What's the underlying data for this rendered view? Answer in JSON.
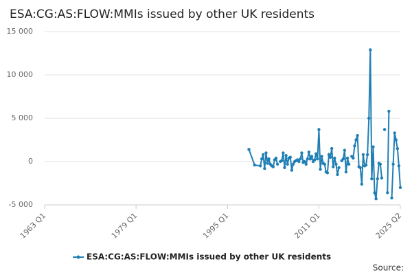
{
  "chart_data": {
    "type": "line",
    "title": "ESA:CG:AS:FLOW:MMIs issued by other UK residents",
    "source_label": "Source:",
    "x": [
      1998.75,
      1999.75,
      2000.75,
      2001.0,
      2001.25,
      2001.5,
      2001.75,
      2002.0,
      2002.25,
      2002.5,
      2002.75,
      2003.0,
      2003.25,
      2003.5,
      2003.75,
      2004.0,
      2004.25,
      2004.5,
      2004.75,
      2005.0,
      2005.25,
      2005.5,
      2005.75,
      2006.0,
      2006.25,
      2006.5,
      2006.75,
      2007.0,
      2007.25,
      2007.5,
      2007.75,
      2008.0,
      2008.25,
      2008.5,
      2008.75,
      2009.0,
      2009.25,
      2009.5,
      2009.75,
      2010.0,
      2010.25,
      2010.5,
      2010.75,
      2011.0,
      2011.25,
      2011.5,
      2011.75,
      2012.0,
      2012.25,
      2012.5,
      2012.75,
      2013.0,
      2013.25,
      2013.5,
      2013.75,
      2014.0,
      2014.25,
      2014.5,
      2014.75,
      2015.0,
      2015.25,
      2015.5,
      2015.75,
      2016.0,
      2016.25,
      2016.5,
      2016.75,
      2017.0,
      2017.25,
      2017.5,
      2017.75,
      2018.0,
      2018.25,
      2018.5,
      2018.75,
      2019.0,
      2019.25,
      2019.5,
      2019.75,
      2020.0,
      2020.25,
      2020.5,
      2020.75,
      2021.0,
      2021.25,
      2021.5,
      2021.75,
      2022.0,
      2022.25,
      2022.5,
      2022.75,
      2023.0,
      2023.25,
      2023.5,
      2023.75,
      2024.0,
      2024.25,
      2024.5,
      2024.75,
      2025.0,
      2025.25
    ],
    "series": [
      {
        "name": "ESA:CG:AS:FLOW:MMIs issued by other UK residents",
        "color": "#1f7fb4",
        "values": [
          1400,
          -400,
          -500,
          300,
          800,
          -800,
          1000,
          -200,
          300,
          -300,
          -500,
          -600,
          200,
          400,
          -300,
          null,
          0,
          100,
          1000,
          -700,
          700,
          -300,
          400,
          500,
          -1000,
          -300,
          0,
          100,
          200,
          0,
          300,
          1000,
          -100,
          0,
          -300,
          300,
          1100,
          300,
          600,
          0,
          200,
          900,
          300,
          3700,
          -900,
          600,
          -200,
          -300,
          -1200,
          -1300,
          800,
          500,
          1500,
          -600,
          400,
          -300,
          -1500,
          -700,
          null,
          100,
          300,
          1300,
          -1200,
          400,
          -300,
          null,
          600,
          400,
          1800,
          2500,
          3000,
          -600,
          -700,
          -2600,
          800,
          -500,
          -400,
          800,
          5000,
          12900,
          -2000,
          1700,
          -3600,
          -4300,
          -2000,
          -200,
          -300,
          -1900,
          null,
          3700,
          null,
          -3600,
          5800,
          null,
          -4200,
          -300,
          3300,
          2500,
          1500,
          -500,
          -3000
        ]
      }
    ],
    "xlim": [
      1963,
      2025.25
    ],
    "xticks": [
      {
        "value": 1963,
        "label": "1963 Q1"
      },
      {
        "value": 1979,
        "label": "1979 Q1"
      },
      {
        "value": 1995,
        "label": "1995 Q1"
      },
      {
        "value": 2011,
        "label": "2011 Q1"
      },
      {
        "value": 2025.25,
        "label": "2025 Q2"
      }
    ],
    "ylim": [
      -5000,
      15000
    ],
    "yticks": [
      {
        "value": -5000,
        "label": "-5 000"
      },
      {
        "value": 0,
        "label": "0"
      },
      {
        "value": 5000,
        "label": "5 000"
      },
      {
        "value": 10000,
        "label": "10 000"
      },
      {
        "value": 15000,
        "label": "15 000"
      }
    ],
    "grid": true,
    "legend": "bottom"
  }
}
